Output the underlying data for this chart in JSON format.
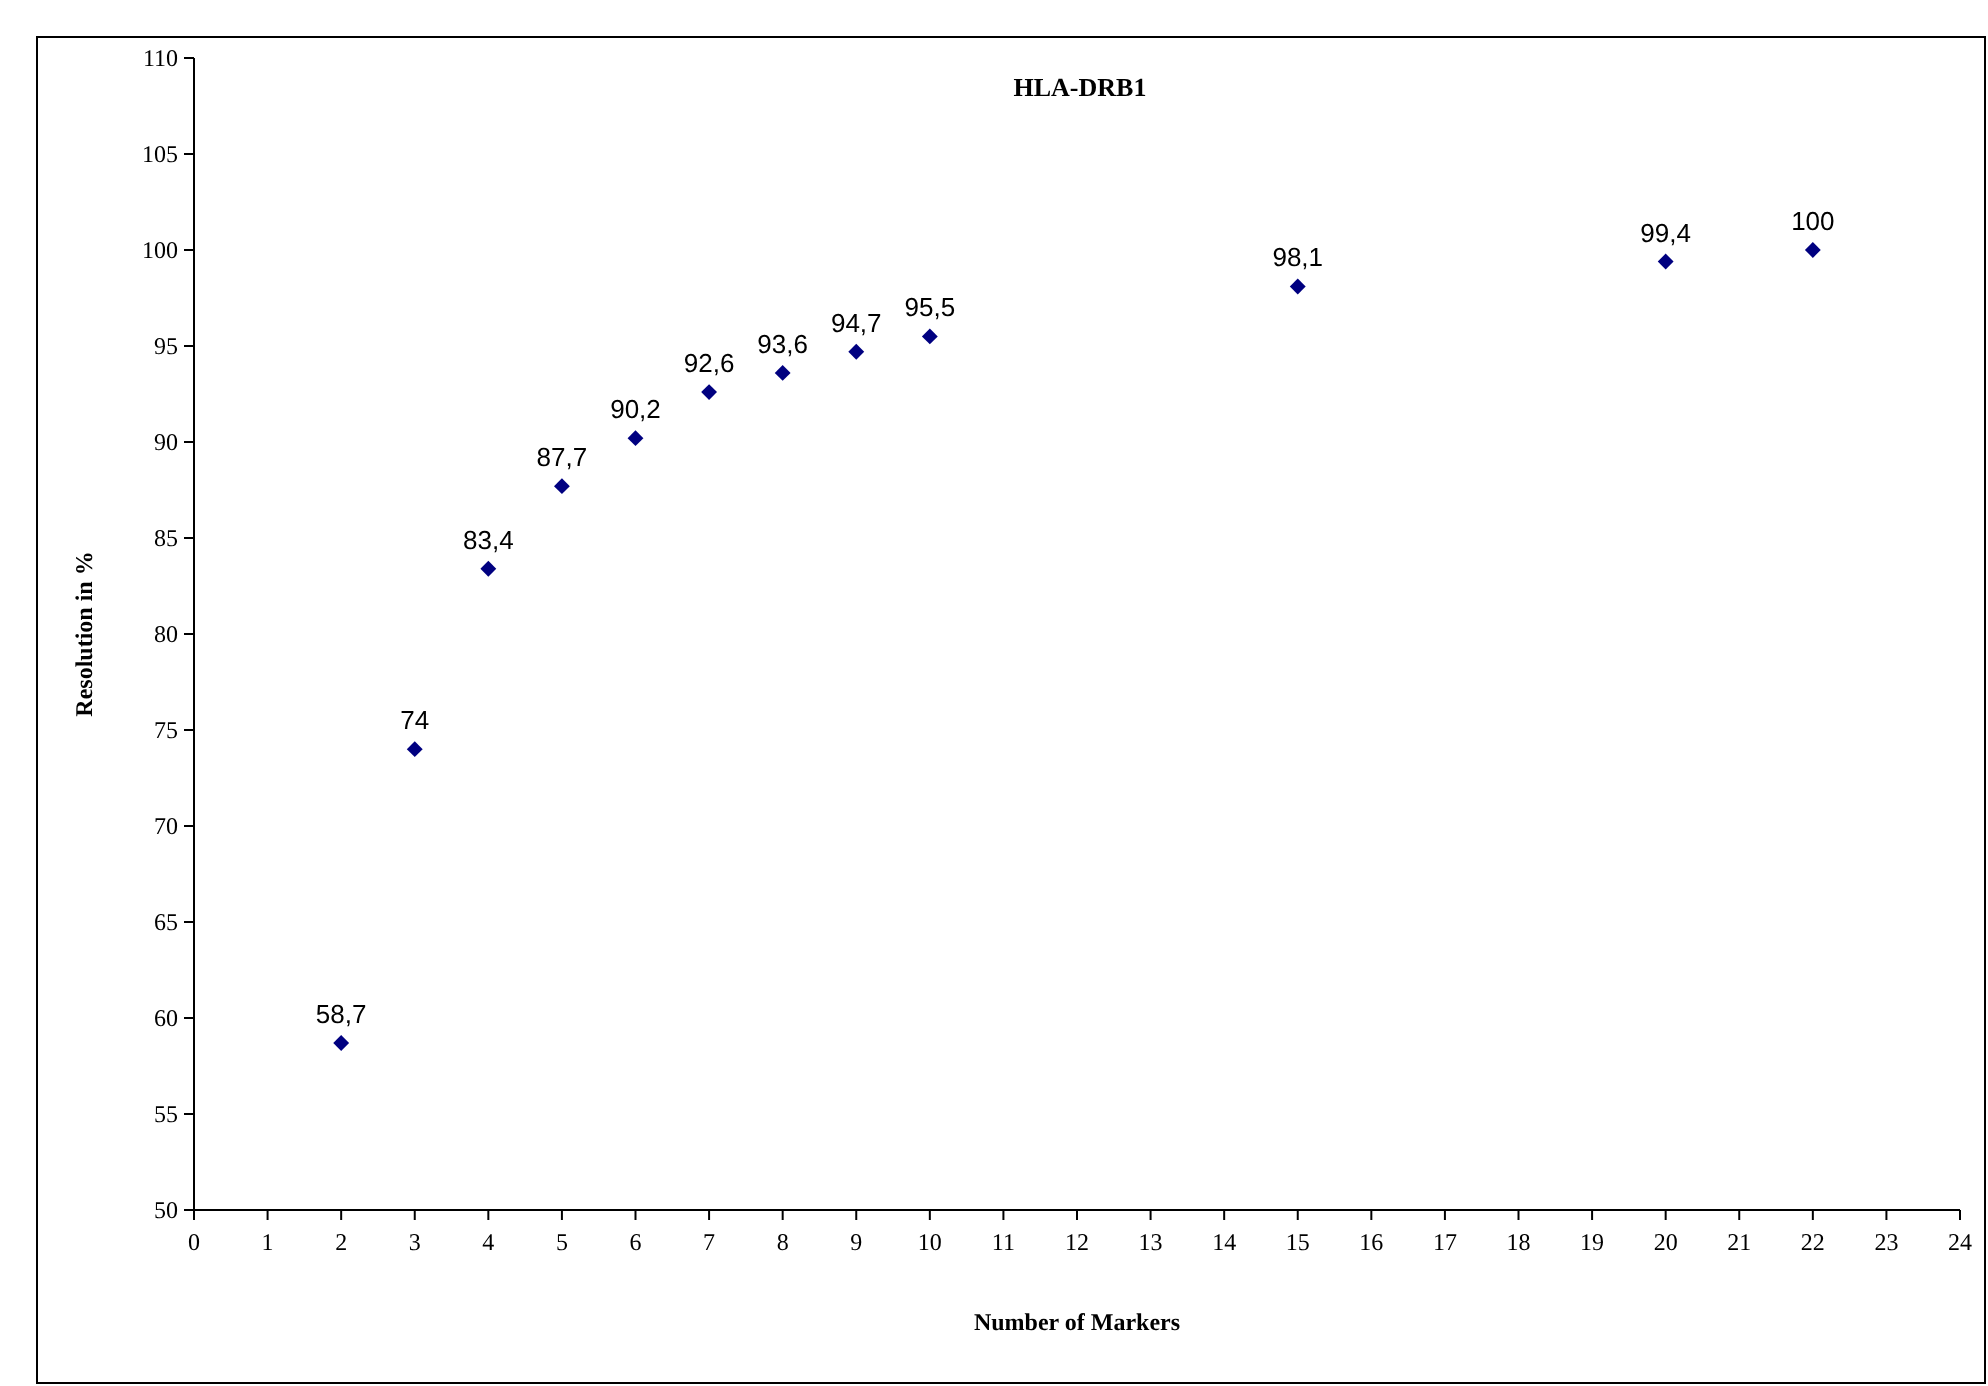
{
  "chart_data": {
    "type": "scatter",
    "title": "HLA-DRB1",
    "xlabel": "Number of Markers",
    "ylabel": "Resolution in %",
    "x": [
      2,
      3,
      4,
      5,
      6,
      7,
      8,
      9,
      10,
      15,
      20,
      22
    ],
    "values": [
      58.7,
      74,
      83.4,
      87.7,
      90.2,
      92.6,
      93.6,
      94.7,
      95.5,
      98.1,
      99.4,
      100
    ],
    "value_labels": [
      "58,7",
      "74",
      "83,4",
      "87,7",
      "90,2",
      "92,6",
      "93,6",
      "94,7",
      "95,5",
      "98,1",
      "99,4",
      "100"
    ],
    "color": "#000080",
    "marker": "diamond",
    "grid": false,
    "xlim": [
      0,
      24
    ],
    "xticks": [
      0,
      1,
      2,
      3,
      4,
      5,
      6,
      7,
      8,
      9,
      10,
      11,
      12,
      13,
      14,
      15,
      16,
      17,
      18,
      19,
      20,
      21,
      22,
      23,
      24
    ],
    "ylim": [
      50,
      110
    ],
    "yticks": [
      50,
      55,
      60,
      65,
      70,
      75,
      80,
      85,
      90,
      95,
      100,
      105,
      110
    ]
  }
}
